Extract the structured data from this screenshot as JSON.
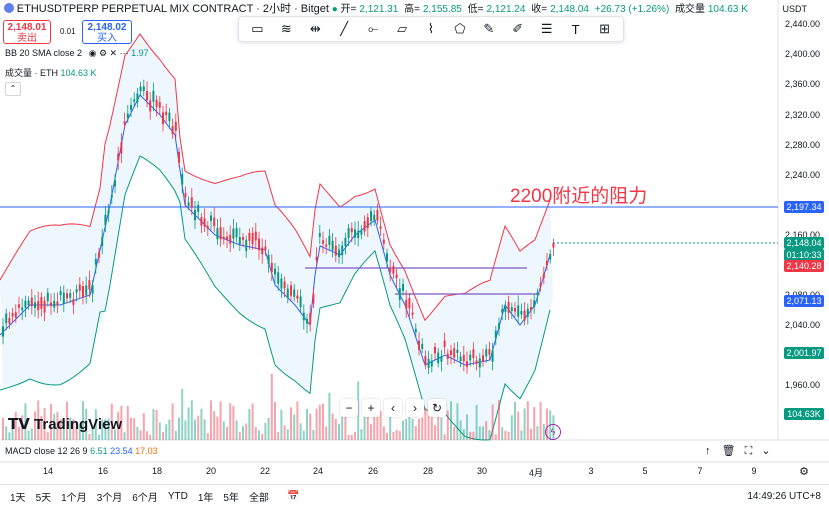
{
  "header": {
    "symbol": "ETHUSDTPERP PERPETUAL MIX CONTRACT · 2小时 · Bitget",
    "ohlc": {
      "o_label": "开=",
      "o": "2,121.31",
      "h_label": "高=",
      "h": "2,155.85",
      "l_label": "低=",
      "l": "2,121.24",
      "c_label": "收=",
      "c": "2,148.04",
      "change": "+26.73 (+1.26%)"
    },
    "volume_label": "成交量",
    "volume_value": "104.63 K",
    "currency": "USDT"
  },
  "trade": {
    "sell_price": "2,148.01",
    "sell_label": "卖出",
    "spread": "0.01",
    "buy_price": "2,148.02",
    "buy_label": "买入"
  },
  "indicators": {
    "bb": "BB 20 SMA close 2",
    "bb_value": "1.97",
    "vol": "成交量 · ETH",
    "vol_value": "104.63 K"
  },
  "annotation": "2200附近的阻力",
  "logo": "TradingView",
  "macd": {
    "label": "MACD close 12 26 9",
    "v1": "6.51",
    "v2": "23.54",
    "v3": "17.03"
  },
  "yaxis": {
    "ticks": [
      "2,440.00",
      "2,400.00",
      "2,360.00",
      "2,320.00",
      "2,280.00",
      "2,240.00",
      "2,160.00",
      "2,080.00",
      "2,040.00",
      "1,960.00"
    ]
  },
  "price_tags": [
    {
      "text": "2,197.34",
      "color": "#2962ff"
    },
    {
      "text": "2,148.04",
      "color": "#089981"
    },
    {
      "text": "01:10:33",
      "color": "#089981"
    },
    {
      "text": "2,140.28",
      "color": "#f23645"
    },
    {
      "text": "2,071.13",
      "color": "#2962ff"
    },
    {
      "text": "2,001.97",
      "color": "#089981"
    },
    {
      "text": "104.63K",
      "color": "#089981"
    }
  ],
  "xaxis": [
    "14",
    "16",
    "18",
    "20",
    "22",
    "24",
    "26",
    "28",
    "30",
    "4月",
    "3",
    "5",
    "7",
    "9"
  ],
  "bottom_bar": {
    "ranges": [
      "1天",
      "5天",
      "1个月",
      "3个月",
      "6个月",
      "YTD",
      "1年",
      "5年",
      "全部"
    ],
    "time": "14:49:26 UTC+8"
  },
  "chart_data": {
    "type": "candlestick",
    "description_series": [
      "price",
      "bb_upper",
      "bb_mid",
      "bb_lower",
      "volume"
    ],
    "y_range": [
      1940,
      2460
    ],
    "annotations": [
      "2200附近的阻力"
    ],
    "horizontal_line_price": 2197.34
  }
}
